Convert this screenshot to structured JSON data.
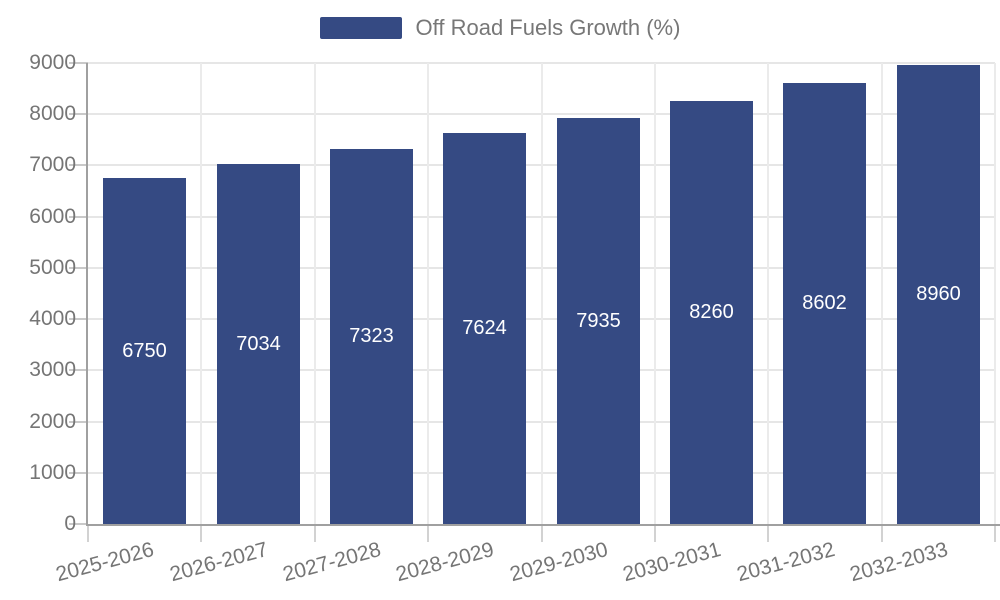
{
  "chart_data": {
    "type": "bar",
    "title": "Off Road Fuels Growth (%)",
    "categories": [
      "2025-2026",
      "2026-2027",
      "2027-2028",
      "2028-2029",
      "2029-2030",
      "2030-2031",
      "2031-2032",
      "2032-2033"
    ],
    "series": [
      {
        "name": "Off Road Fuels Growth (%)",
        "values": [
          6750,
          7034,
          7323,
          7624,
          7935,
          8260,
          8602,
          8960
        ]
      }
    ],
    "value_labels": [
      "6750",
      "7034",
      "7323",
      "7624",
      "7935",
      "8260",
      "8602",
      "8960"
    ],
    "ylabel": "",
    "xlabel": "",
    "ylim": [
      0,
      9000
    ],
    "ytick_step": 1000,
    "ytick_labels": [
      "0",
      "1000",
      "2000",
      "3000",
      "4000",
      "5000",
      "6000",
      "7000",
      "8000",
      "9000"
    ],
    "grid": true,
    "legend_position": "top-center",
    "colors": {
      "bar": "#354a83",
      "value_label": "#ffffff",
      "axis_label": "#757575",
      "legend_text": "#777777",
      "axis_line": "#a0a0a0",
      "gridline": "#e6e6e6",
      "background": "#ffffff"
    }
  }
}
